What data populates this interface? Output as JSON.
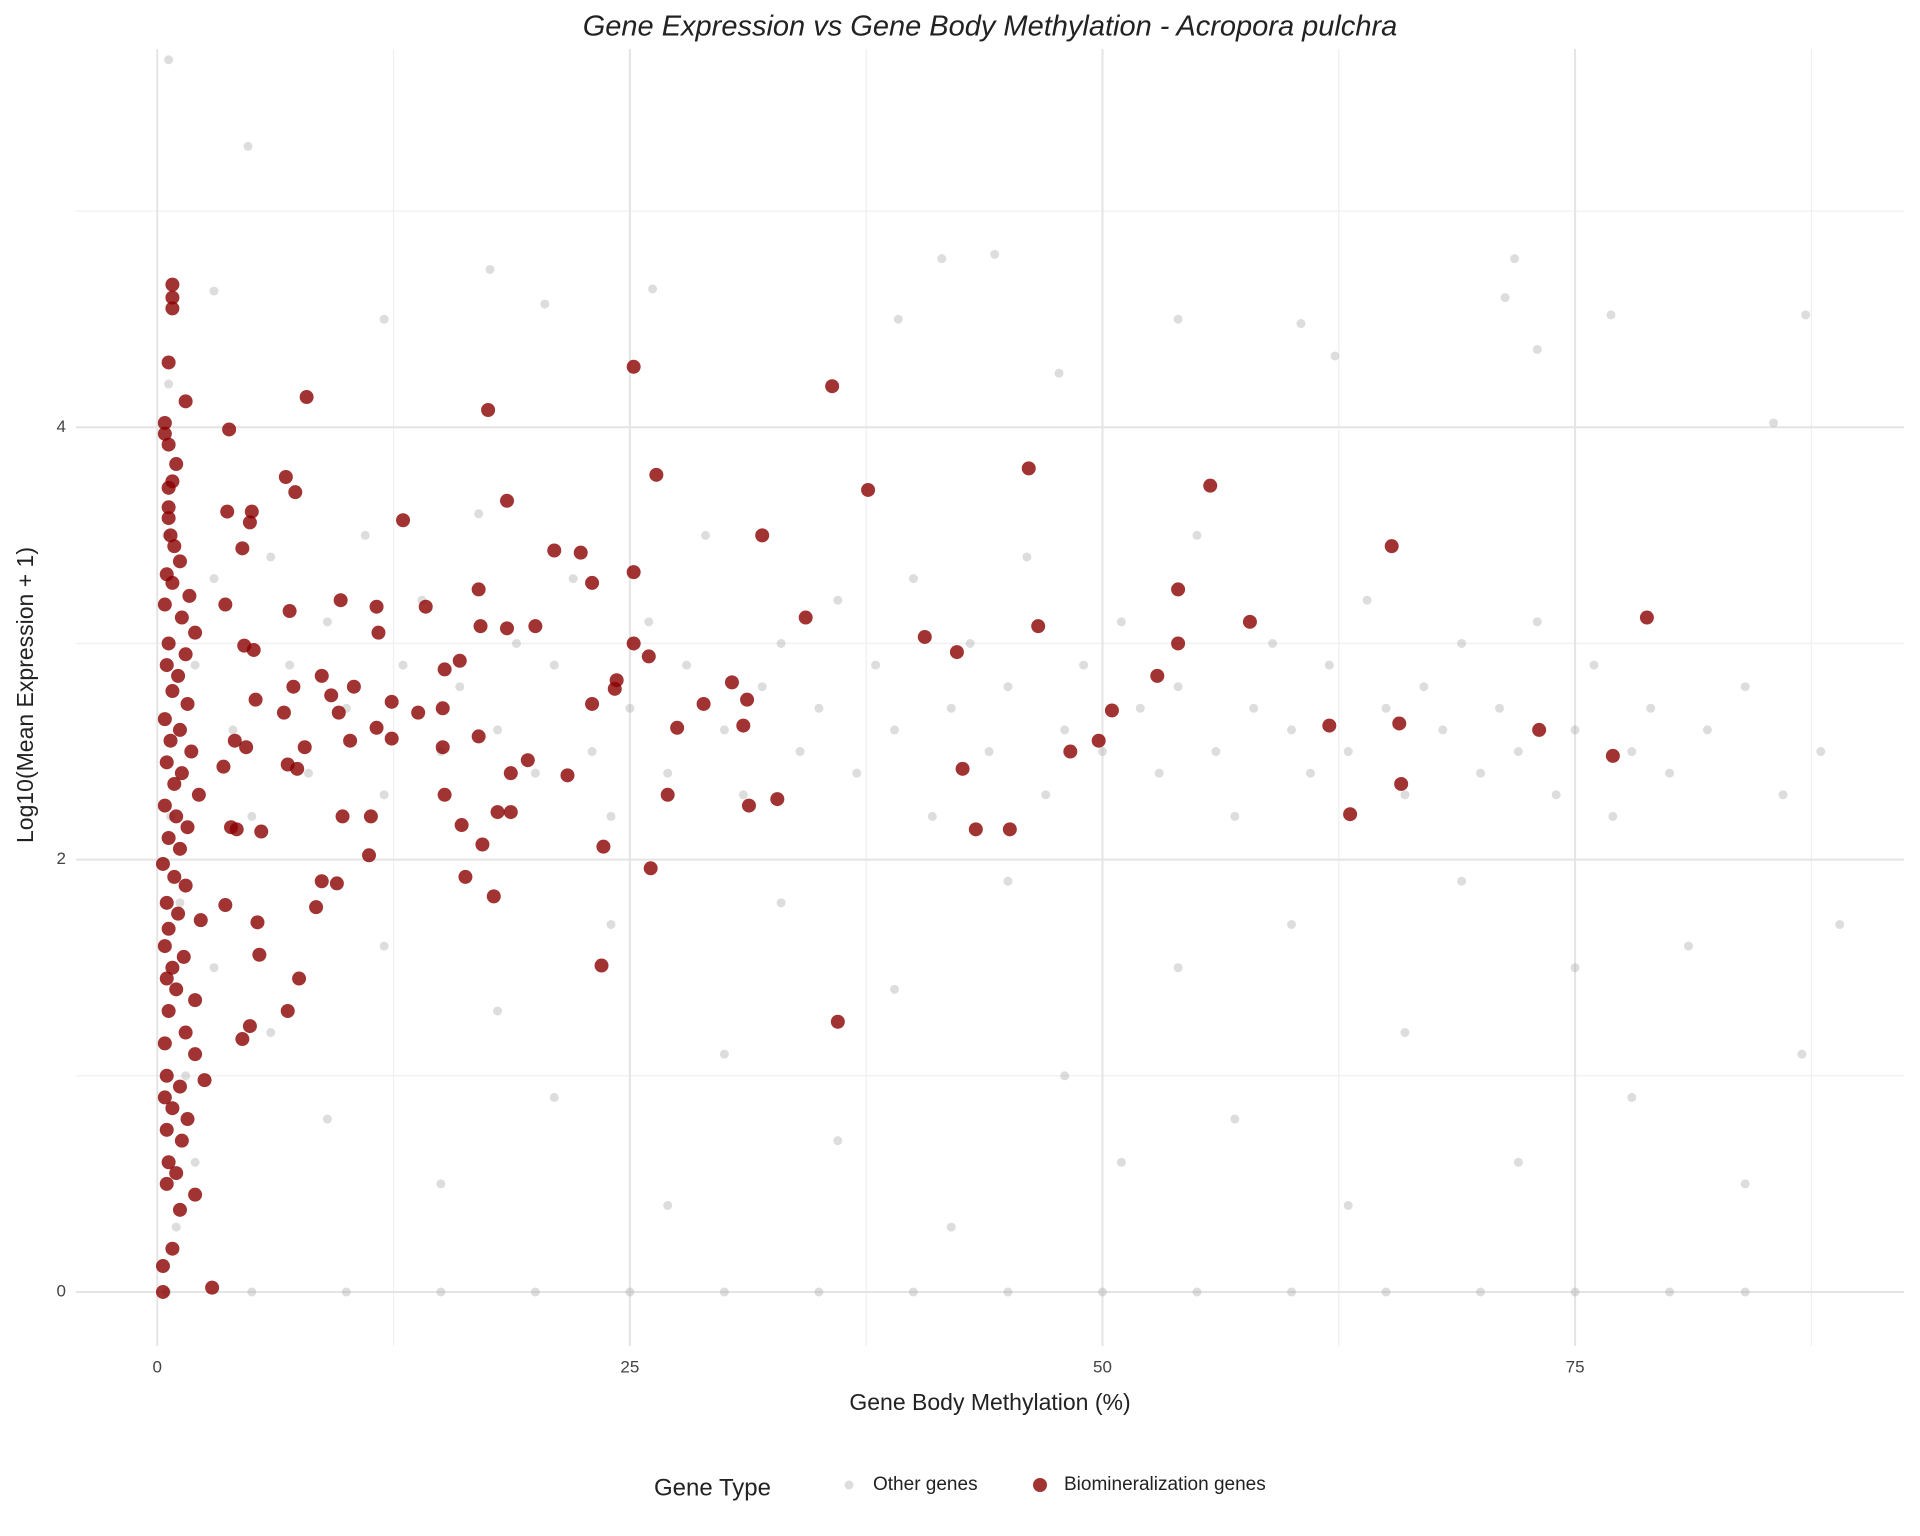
{
  "chart_data": {
    "type": "scatter",
    "title": "Gene Expression vs Gene Body Methylation - Acropora pulchra",
    "x_label": "Gene Body Methylation (%)",
    "y_label": "Log10(Mean Expression + 1)",
    "legend_title": "Gene Type",
    "legend_position": "bottom",
    "grid": true,
    "xlim": [
      -4.3,
      92.4
    ],
    "ylim": [
      -0.25,
      5.75
    ],
    "xticks": [
      0,
      25,
      50,
      75
    ],
    "yticks": [
      0,
      2,
      4
    ],
    "series": [
      {
        "name": "Other genes",
        "color": "#a9a9a9",
        "x": [
          0.6,
          4.8,
          41.5,
          44.3,
          71.8,
          71.3,
          87.2,
          17.6,
          26.2,
          20.5,
          3.0,
          39.2,
          60.5,
          54,
          76.9,
          73,
          62.3,
          47.7,
          85.5,
          12,
          2,
          3,
          4,
          5,
          6,
          7,
          8,
          9,
          10,
          11,
          12,
          13,
          14,
          15,
          16,
          17,
          18,
          19,
          20,
          21,
          22,
          23,
          24,
          25,
          26,
          27,
          28,
          29,
          30,
          31,
          32,
          33,
          34,
          35,
          36,
          37,
          38,
          39,
          40,
          41,
          42,
          43,
          44,
          45,
          46,
          47,
          48,
          49,
          50,
          51,
          52,
          53,
          54,
          55,
          56,
          57,
          58,
          59,
          60,
          61,
          62,
          63,
          64,
          65,
          66,
          67,
          68,
          69,
          70,
          71,
          72,
          73,
          74,
          75,
          76,
          77,
          78,
          79,
          80,
          82,
          84,
          86,
          88,
          3,
          6,
          9,
          12,
          15,
          18,
          21,
          24,
          27,
          30,
          33,
          36,
          39,
          42,
          45,
          48,
          51,
          54,
          57,
          60,
          63,
          66,
          69,
          72,
          75,
          78,
          81,
          84,
          87,
          89,
          2,
          1.5,
          1,
          0.7,
          0.5,
          0.6,
          1.2,
          0.5,
          5,
          10,
          15,
          20,
          25,
          30,
          35,
          40,
          45,
          50,
          55,
          60,
          65,
          70,
          75,
          80,
          84
        ],
        "values": [
          5.7,
          5.3,
          4.78,
          4.8,
          4.78,
          4.6,
          4.52,
          4.73,
          4.64,
          4.57,
          4.63,
          4.5,
          4.48,
          4.5,
          4.52,
          4.36,
          4.33,
          4.25,
          4.02,
          4.5,
          2.9,
          3.3,
          2.6,
          2.2,
          3.4,
          2.9,
          2.4,
          3.1,
          2.7,
          3.5,
          2.3,
          2.9,
          3.2,
          2.5,
          2.8,
          3.6,
          2.6,
          3.0,
          2.4,
          2.9,
          3.3,
          2.5,
          2.2,
          2.7,
          3.1,
          2.4,
          2.9,
          3.5,
          2.6,
          2.3,
          2.8,
          3.0,
          2.5,
          2.7,
          3.2,
          2.4,
          2.9,
          2.6,
          3.3,
          2.2,
          2.7,
          3.0,
          2.5,
          2.8,
          3.4,
          2.3,
          2.6,
          2.9,
          2.5,
          3.1,
          2.7,
          2.4,
          2.8,
          3.5,
          2.5,
          2.2,
          2.7,
          3.0,
          2.6,
          2.4,
          2.9,
          2.5,
          3.2,
          2.7,
          2.3,
          2.8,
          2.6,
          3.0,
          2.4,
          2.7,
          2.5,
          3.1,
          2.3,
          2.6,
          2.9,
          2.2,
          2.5,
          2.7,
          2.4,
          2.6,
          2.8,
          2.3,
          2.5,
          1.5,
          1.2,
          0.8,
          1.6,
          0.5,
          1.3,
          0.9,
          1.7,
          0.4,
          1.1,
          1.8,
          0.7,
          1.4,
          0.3,
          1.9,
          1.0,
          0.6,
          1.5,
          0.8,
          1.7,
          0.4,
          1.2,
          1.9,
          0.6,
          1.5,
          0.9,
          1.6,
          0.5,
          1.1,
          1.7,
          0.6,
          1.0,
          0.3,
          2.2,
          3.5,
          4.2,
          1.8,
          0,
          0,
          0,
          0,
          0,
          0,
          0,
          0,
          0,
          0,
          0,
          0,
          0,
          0,
          0,
          0,
          0,
          0
        ]
      },
      {
        "name": "Biomineralization genes",
        "color": "#8b0000",
        "x": [
          0.8,
          0.8,
          0.8,
          0.6,
          1.5,
          0.4,
          0.4,
          0.6,
          1.0,
          0.8,
          0.6,
          0.6,
          0.6,
          0.7,
          0.9,
          1.2,
          0.5,
          0.8,
          1.7,
          0.4,
          1.3,
          2.0,
          0.6,
          1.5,
          0.5,
          1.1,
          0.8,
          1.6,
          0.4,
          1.2,
          0.7,
          1.8,
          0.5,
          1.3,
          0.9,
          2.2,
          0.4,
          1.0,
          1.6,
          0.6,
          1.2,
          0.3,
          0.9,
          1.5,
          0.5,
          1.1,
          2.3,
          0.6,
          0.4,
          1.4,
          0.8,
          0.5,
          1.0,
          2.0,
          0.6,
          1.5,
          0.4,
          2.0,
          0.5,
          1.2,
          0.4,
          0.8,
          1.6,
          0.5,
          1.3,
          0.6,
          1.0,
          0.5,
          2.0,
          1.2,
          0.8,
          0.3,
          0.3,
          2.9,
          7.9,
          3.8,
          17.5,
          25.2,
          35.7,
          26.4,
          37.6,
          46.1,
          55.7,
          18.5,
          6.8,
          7.3,
          3.7,
          5.0,
          13.0,
          4.9,
          4.5,
          32,
          21,
          22.4,
          65.3,
          17,
          23,
          54,
          25.2,
          9.7,
          11.6,
          7,
          14.2,
          3.6,
          34.3,
          40.6,
          42.3,
          46.6,
          57.8,
          78.8,
          25.2,
          54,
          26,
          11.7,
          4.6,
          5.1,
          20,
          17.1,
          18.5,
          15.2,
          16.0,
          8.7,
          9.2,
          10.4,
          5.2,
          7.2,
          24.3,
          24.2,
          23,
          30.4,
          31.2,
          28.9,
          52.9,
          50.5,
          9.6,
          6.7,
          12.4,
          13.8,
          15.1,
          17.0,
          12.4,
          11.6,
          10.2,
          15.1,
          4.1,
          4.7,
          7.8,
          62.0,
          65.7,
          73.1,
          77.0,
          49.8,
          48.3,
          27.5,
          31,
          19.6,
          18.7,
          21.7,
          6.9,
          7.4,
          3.5,
          42.6,
          65.8,
          63.1,
          43.3,
          45.1,
          31.3,
          32.8,
          27.0,
          15.2,
          9.8,
          11.3,
          16.1,
          3.9,
          4.2,
          5.5,
          23.6,
          17.2,
          18.0,
          18.7,
          11.2,
          26.1,
          16.3,
          9.5,
          8.7,
          17.8,
          8.4,
          3.6,
          5.3,
          5.4,
          7.5,
          6.9,
          23.5,
          36,
          4.9,
          4.5,
          2.5
        ],
        "values": [
          4.66,
          4.6,
          4.55,
          4.3,
          4.12,
          4.02,
          3.97,
          3.92,
          3.83,
          3.75,
          3.72,
          3.63,
          3.58,
          3.5,
          3.45,
          3.38,
          3.32,
          3.28,
          3.22,
          3.18,
          3.12,
          3.05,
          3.0,
          2.95,
          2.9,
          2.85,
          2.78,
          2.72,
          2.65,
          2.6,
          2.55,
          2.5,
          2.45,
          2.4,
          2.35,
          2.3,
          2.25,
          2.2,
          2.15,
          2.1,
          2.05,
          1.98,
          1.92,
          1.88,
          1.8,
          1.75,
          1.72,
          1.68,
          1.6,
          1.55,
          1.5,
          1.45,
          1.4,
          1.35,
          1.3,
          1.2,
          1.15,
          1.1,
          1.0,
          0.95,
          0.9,
          0.85,
          0.8,
          0.75,
          0.7,
          0.6,
          0.55,
          0.5,
          0.45,
          0.38,
          0.2,
          0.12,
          0,
          0.02,
          4.14,
          3.99,
          4.08,
          4.28,
          4.19,
          3.78,
          3.71,
          3.81,
          3.73,
          3.66,
          3.77,
          3.7,
          3.61,
          3.61,
          3.57,
          3.56,
          3.44,
          3.5,
          3.43,
          3.42,
          3.45,
          3.25,
          3.28,
          3.25,
          3.33,
          3.2,
          3.17,
          3.15,
          3.17,
          3.18,
          3.12,
          3.03,
          2.96,
          3.08,
          3.1,
          3.12,
          3.0,
          3.0,
          2.94,
          3.05,
          2.99,
          2.97,
          3.08,
          3.08,
          3.07,
          2.88,
          2.92,
          2.85,
          2.76,
          2.8,
          2.74,
          2.8,
          2.83,
          2.79,
          2.72,
          2.82,
          2.74,
          2.72,
          2.85,
          2.69,
          2.68,
          2.68,
          2.73,
          2.68,
          2.7,
          2.57,
          2.56,
          2.61,
          2.55,
          2.52,
          2.55,
          2.52,
          2.52,
          2.62,
          2.63,
          2.6,
          2.48,
          2.55,
          2.5,
          2.61,
          2.62,
          2.46,
          2.4,
          2.39,
          2.44,
          2.42,
          2.43,
          2.42,
          2.35,
          2.21,
          2.14,
          2.14,
          2.25,
          2.28,
          2.3,
          2.3,
          2.2,
          2.2,
          2.16,
          2.15,
          2.14,
          2.13,
          2.06,
          2.07,
          2.22,
          2.22,
          2.02,
          1.96,
          1.92,
          1.89,
          1.9,
          1.83,
          1.78,
          1.79,
          1.71,
          1.56,
          1.45,
          1.3,
          1.51,
          1.25,
          1.23,
          1.17,
          0.98
        ]
      }
    ]
  }
}
